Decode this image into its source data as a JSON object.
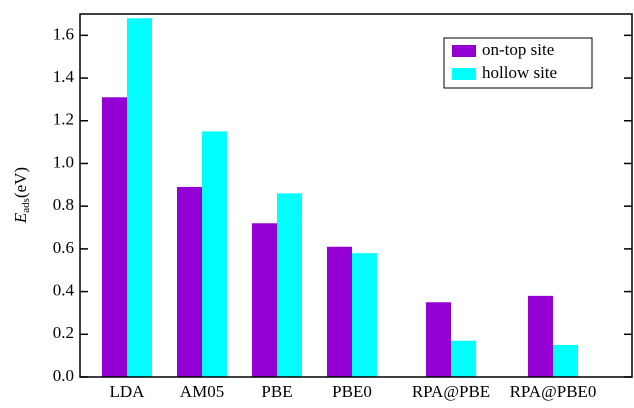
{
  "chart_data": {
    "type": "bar",
    "y_label": {
      "symbol": "E",
      "subscript": "ads",
      "unit": "(eV)"
    },
    "categories": [
      "LDA",
      "AM05",
      "PBE",
      "PBE0",
      "RPA@PBE",
      "RPA@PBE0"
    ],
    "series": [
      {
        "name": "on-top site",
        "color": "#9400d3",
        "values": [
          1.31,
          0.89,
          0.72,
          0.61,
          0.35,
          0.38
        ]
      },
      {
        "name": "hollow site",
        "color": "#00ffff",
        "values": [
          1.68,
          1.15,
          0.86,
          0.58,
          0.17,
          0.15
        ]
      }
    ],
    "ylim": [
      0,
      1.7
    ],
    "yticks": [
      {
        "value": 0,
        "label": "0.0"
      },
      0.2,
      0.4,
      0.6,
      0.8,
      {
        "value": 1,
        "label": "1.0"
      },
      1.2,
      1.4,
      1.6
    ],
    "legend": "upper right"
  }
}
